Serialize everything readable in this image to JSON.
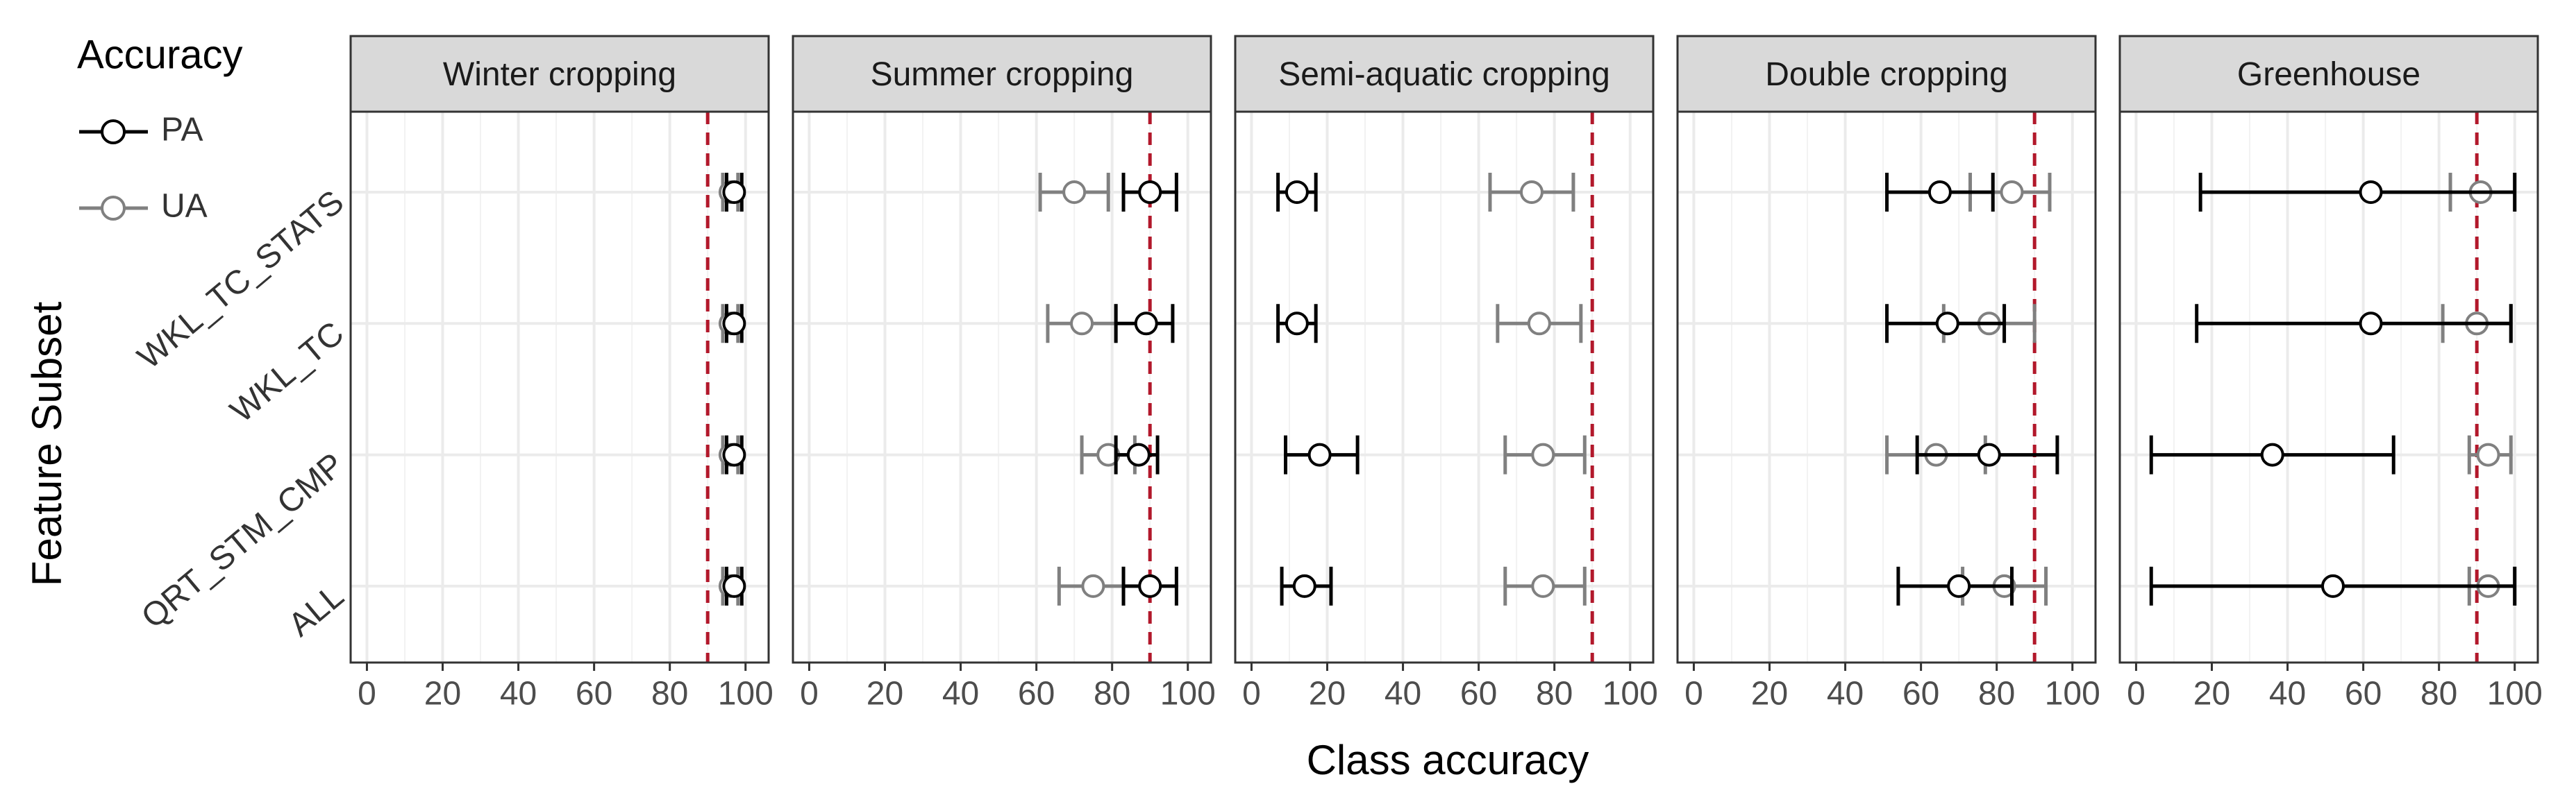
{
  "chart_data": {
    "type": "errorbar",
    "x_label": "Class accuracy",
    "y_label": "Feature Subset",
    "legend_title": "Accuracy",
    "categories": [
      "WKL_TC_STATS",
      "WKL_TC",
      "QRT_STM_CMP",
      "ALL"
    ],
    "xlim": [
      -4.3,
      106.1
    ],
    "xticks": [
      0,
      20,
      40,
      60,
      80,
      100
    ],
    "grid": true,
    "reference_line": {
      "value": 90,
      "color": "#b2182b"
    },
    "series": [
      {
        "name": "PA",
        "color": "#000000"
      },
      {
        "name": "UA",
        "color": "#808080"
      }
    ],
    "panels": [
      {
        "title": "Winter cropping",
        "series": [
          {
            "values": [
              97,
              97,
              97,
              97
            ],
            "lower": [
              95,
              95,
              95,
              95
            ],
            "upper": [
              99,
              99,
              99,
              99
            ]
          },
          {
            "values": [
              96,
              96,
              96,
              96
            ],
            "lower": [
              94,
              94,
              94,
              94
            ],
            "upper": [
              98,
              98,
              98,
              98
            ]
          }
        ]
      },
      {
        "title": "Summer cropping",
        "series": [
          {
            "values": [
              90,
              89,
              87,
              90
            ],
            "lower": [
              83,
              81,
              81,
              83
            ],
            "upper": [
              97,
              96,
              92,
              97
            ]
          },
          {
            "values": [
              70,
              72,
              79,
              75
            ],
            "lower": [
              61,
              63,
              72,
              66
            ],
            "upper": [
              79,
              81,
              86,
              83
            ]
          }
        ]
      },
      {
        "title": "Semi-aquatic cropping",
        "series": [
          {
            "values": [
              12,
              12,
              18,
              14
            ],
            "lower": [
              7,
              7,
              9,
              8
            ],
            "upper": [
              17,
              17,
              28,
              21
            ]
          },
          {
            "values": [
              74,
              76,
              77,
              77
            ],
            "lower": [
              63,
              65,
              67,
              67
            ],
            "upper": [
              85,
              87,
              88,
              88
            ]
          }
        ]
      },
      {
        "title": "Double cropping",
        "series": [
          {
            "values": [
              65,
              67,
              78,
              70
            ],
            "lower": [
              51,
              51,
              59,
              54
            ],
            "upper": [
              79,
              82,
              96,
              84
            ]
          },
          {
            "values": [
              84,
              78,
              64,
              82
            ],
            "lower": [
              73,
              66,
              51,
              71
            ],
            "upper": [
              94,
              90,
              77,
              93
            ]
          }
        ]
      },
      {
        "title": "Greenhouse",
        "series": [
          {
            "values": [
              62,
              62,
              36,
              52
            ],
            "lower": [
              17,
              16,
              4,
              4
            ],
            "upper": [
              100,
              99,
              68,
              100
            ]
          },
          {
            "values": [
              91,
              90,
              93,
              93
            ],
            "lower": [
              83,
              81,
              88,
              88
            ],
            "upper": [
              100,
              99,
              99,
              100
            ]
          }
        ]
      }
    ]
  }
}
